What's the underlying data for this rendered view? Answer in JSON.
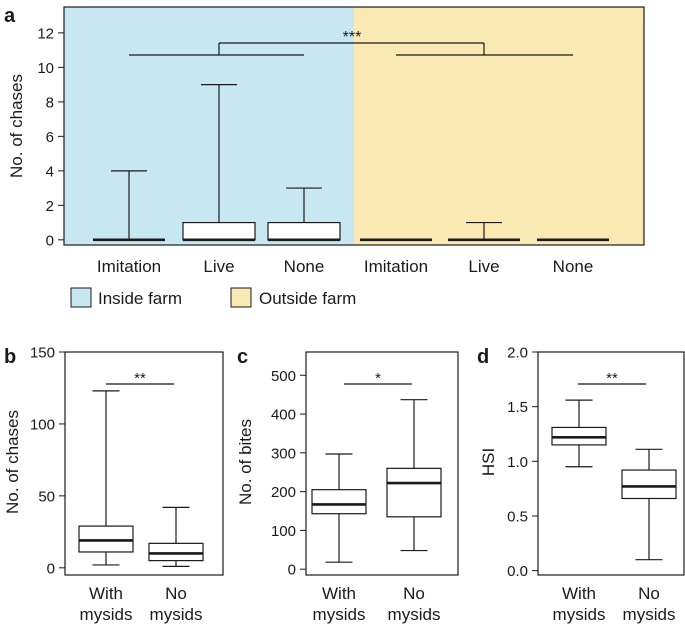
{
  "chart_data": [
    {
      "panel": "a",
      "type": "box",
      "ylabel": "No. of chases",
      "ylim": [
        -0.3,
        13.5
      ],
      "yticks": [
        0,
        2,
        4,
        6,
        8,
        10,
        12
      ],
      "categories": [
        "Imitation",
        "Live",
        "None",
        "Imitation",
        "Live",
        "None"
      ],
      "groups": [
        "Inside farm",
        "Inside farm",
        "Inside farm",
        "Outside farm",
        "Outside farm",
        "Outside farm"
      ],
      "boxes": [
        {
          "min": 0,
          "q1": 0,
          "median": 0,
          "q3": 0,
          "max": 4
        },
        {
          "min": 0,
          "q1": 0,
          "median": 0,
          "q3": 1,
          "max": 9
        },
        {
          "min": 0,
          "q1": 0,
          "median": 0,
          "q3": 1,
          "max": 3
        },
        {
          "min": 0,
          "q1": 0,
          "median": 0,
          "q3": 0,
          "max": 0
        },
        {
          "min": 0,
          "q1": 0,
          "median": 0,
          "q3": 0,
          "max": 1
        },
        {
          "min": 0,
          "q1": 0,
          "median": 0,
          "q3": 0,
          "max": 0
        }
      ],
      "background_colors": {
        "Inside farm": "#c7e8f3",
        "Outside farm": "#fbe9b3"
      },
      "legend": [
        "Inside farm",
        "Outside farm"
      ],
      "legend_position": "bottom",
      "significance": "***"
    },
    {
      "panel": "b",
      "type": "box",
      "ylabel": "No. of chases",
      "ylim": [
        -5,
        150
      ],
      "yticks": [
        0,
        50,
        100,
        150
      ],
      "categories": [
        "With mysids",
        "No mysids"
      ],
      "boxes": [
        {
          "min": 2,
          "q1": 11,
          "median": 19,
          "q3": 29,
          "max": 123
        },
        {
          "min": 1,
          "q1": 5,
          "median": 10,
          "q3": 17,
          "max": 42
        }
      ],
      "significance": "**"
    },
    {
      "panel": "c",
      "type": "box",
      "ylabel": "No. of bites",
      "ylim": [
        -15,
        560
      ],
      "yticks": [
        0,
        100,
        200,
        300,
        400,
        500
      ],
      "categories": [
        "With mysids",
        "No mysids"
      ],
      "boxes": [
        {
          "min": 18,
          "q1": 143,
          "median": 167,
          "q3": 205,
          "max": 297
        },
        {
          "min": 48,
          "q1": 135,
          "median": 222,
          "q3": 260,
          "max": 437
        }
      ],
      "significance": "*"
    },
    {
      "panel": "d",
      "type": "box",
      "ylabel": "HSI",
      "ylim": [
        -0.04,
        2.0
      ],
      "yticks": [
        0.0,
        0.5,
        1.0,
        1.5,
        2.0
      ],
      "ytick_labels": [
        "0.0",
        "0.5",
        "1.0",
        "1.5",
        "2.0"
      ],
      "categories": [
        "With mysids",
        "No mysids"
      ],
      "boxes": [
        {
          "min": 0.95,
          "q1": 1.15,
          "median": 1.22,
          "q3": 1.31,
          "max": 1.56
        },
        {
          "min": 0.1,
          "q1": 0.66,
          "median": 0.77,
          "q3": 0.92,
          "max": 1.11
        }
      ],
      "significance": "**"
    }
  ],
  "panel_letters": [
    "a",
    "b",
    "c",
    "d"
  ],
  "bottom_labels": {
    "with_top": "With",
    "with_bottom": "mysids",
    "no_top": "No",
    "no_bottom": "mysids"
  }
}
